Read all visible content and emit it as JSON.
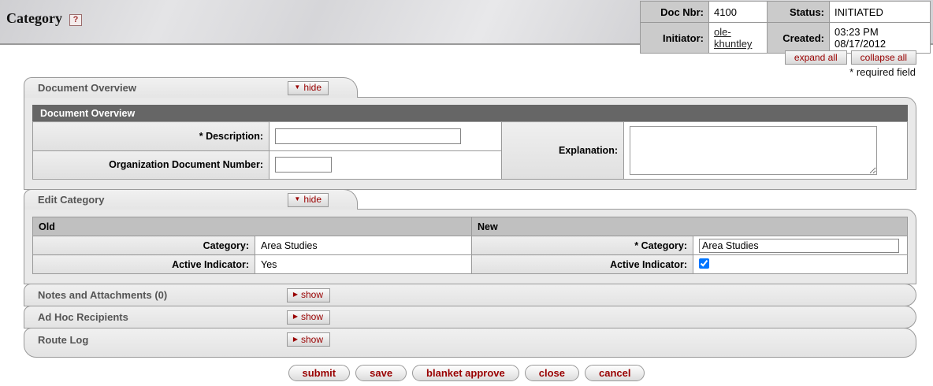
{
  "header": {
    "title": "Category",
    "help_icon": "?",
    "doc_info": {
      "doc_nbr_label": "Doc Nbr:",
      "doc_nbr": "4100",
      "status_label": "Status:",
      "status": "INITIATED",
      "initiator_label": "Initiator:",
      "initiator": "ole-khuntley",
      "created_label": "Created:",
      "created": "03:23 PM 08/17/2012"
    }
  },
  "toolbar": {
    "expand_all": "expand all",
    "collapse_all": "collapse all",
    "required_note": "* required field"
  },
  "tabs": {
    "document_overview": {
      "title": "Document Overview",
      "toggle": "hide",
      "toggle_arrow": "▼",
      "section_header": "Document Overview",
      "fields": {
        "description_required": "*",
        "description_label": "Description:",
        "description_value": "",
        "org_doc_number_label": "Organization Document Number:",
        "org_doc_number_value": "",
        "explanation_label": "Explanation:",
        "explanation_value": ""
      }
    },
    "edit_category": {
      "title": "Edit Category",
      "toggle": "hide",
      "toggle_arrow": "▼",
      "old_header": "Old",
      "new_header": "New",
      "old": {
        "category_label": "Category:",
        "category_value": "Area Studies",
        "active_label": "Active Indicator:",
        "active_value": "Yes"
      },
      "new": {
        "category_required": "*",
        "category_label": "Category:",
        "category_value": "Area Studies",
        "active_label": "Active Indicator:",
        "active_checked": true
      }
    },
    "notes": {
      "title": "Notes and Attachments (0)",
      "toggle": "show",
      "toggle_arrow": "▶"
    },
    "adhoc": {
      "title": "Ad Hoc Recipients",
      "toggle": "show",
      "toggle_arrow": "▶"
    },
    "routelog": {
      "title": "Route Log",
      "toggle": "show",
      "toggle_arrow": "▶"
    }
  },
  "actions": {
    "submit": "submit",
    "save": "save",
    "blanket_approve": "blanket approve",
    "close": "close",
    "cancel": "cancel"
  },
  "colors": {
    "accent_red": "#990000",
    "section_header_gray": "#666666",
    "subheader_gray": "#c0c0c0",
    "label_cell_gray": "#e6e6e6",
    "border_gray": "#999999"
  }
}
